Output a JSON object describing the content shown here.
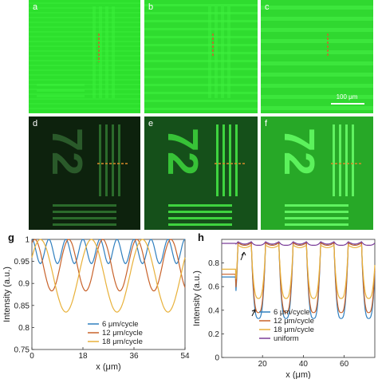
{
  "top_row": {
    "labels": [
      "a",
      "b",
      "c"
    ],
    "scale_bar_label": "100 μm"
  },
  "middle_row": {
    "labels": [
      "d",
      "e",
      "f"
    ],
    "digits": "72"
  },
  "chart_data": [
    {
      "id": "g",
      "type": "line",
      "panel_label": "g",
      "xlabel": "x (μm)",
      "ylabel": "Intensity (a.u.)",
      "xlim": [
        0,
        54
      ],
      "ylim": [
        0.75,
        1.0
      ],
      "xticks": [
        0,
        18,
        36,
        54
      ],
      "yticks": [
        0.75,
        0.8,
        0.85,
        0.9,
        0.95,
        1
      ],
      "legend_position": "bottom-center",
      "series": [
        {
          "name": "6 μm/cycle",
          "color": "#2f7fbf",
          "period": 6,
          "min": 0.945,
          "max": 1.0,
          "phase": 0
        },
        {
          "name": "12 μm/cycle",
          "color": "#c8622a",
          "period": 12,
          "min": 0.883,
          "max": 1.0,
          "phase": 1
        },
        {
          "name": "18 μm/cycle",
          "color": "#e8b13a",
          "period": 18,
          "min": 0.835,
          "max": 1.0,
          "phase": 3
        }
      ]
    },
    {
      "id": "h",
      "type": "line",
      "panel_label": "h",
      "xlabel": "x (μm)",
      "ylabel": "Intensity (a.u.)",
      "xlim": [
        0,
        75
      ],
      "ylim": [
        0,
        1.0
      ],
      "xticks": [
        20,
        40,
        60
      ],
      "yticks": [
        0,
        0.2,
        0.4,
        0.6,
        0.8
      ],
      "legend_position": "bottom-center",
      "series": [
        {
          "name": "6 μm/cycle",
          "color": "#2f7fbf",
          "low": 0.33,
          "high": 0.97
        },
        {
          "name": "12 μm/cycle",
          "color": "#c8622a",
          "low": 0.38,
          "high": 0.97
        },
        {
          "name": "18 μm/cycle",
          "color": "#e8b13a",
          "low": 0.5,
          "high": 0.95
        },
        {
          "name": "uniform",
          "color": "#7a3d99",
          "low": 0.95,
          "high": 0.98
        }
      ]
    }
  ]
}
